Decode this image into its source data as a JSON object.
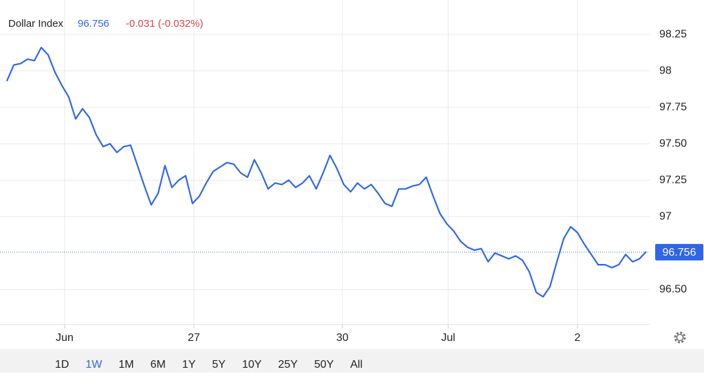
{
  "header": {
    "title": "Dollar Index",
    "price": "96.756",
    "change": "-0.031 (-0.032%)"
  },
  "chart_data": {
    "type": "line",
    "color": "#2f66e8",
    "grid": true,
    "last_value": 96.756,
    "xlim": [
      -1,
      93.5
    ],
    "ylim": [
      96.26,
      98.486
    ],
    "xticks": [
      {
        "value": 8.4,
        "label": "Jun"
      },
      {
        "value": 27.2,
        "label": "27"
      },
      {
        "value": 48.8,
        "label": "30"
      },
      {
        "value": 64.2,
        "label": "Jul"
      },
      {
        "value": 83,
        "label": "2"
      }
    ],
    "yticks": [
      98.25,
      98,
      97.75,
      {
        "value": 97.5,
        "label": "97.50"
      },
      97.25,
      97,
      {
        "value": 96.5,
        "label": "96.50"
      }
    ],
    "x": [
      0,
      1,
      2,
      3,
      4,
      5,
      6,
      7,
      8,
      9,
      10,
      11,
      12,
      13,
      14,
      15,
      16,
      17,
      18,
      19,
      20,
      21,
      22,
      23,
      24,
      25,
      26,
      27,
      28,
      29,
      30,
      31,
      32,
      33,
      34,
      35,
      36,
      37,
      38,
      39,
      40,
      41,
      42,
      43,
      44,
      45,
      46,
      47,
      48,
      49,
      50,
      51,
      52,
      53,
      54,
      55,
      56,
      57,
      58,
      59,
      60,
      61,
      62,
      63,
      64,
      65,
      66,
      67,
      68,
      69,
      70,
      71,
      72,
      73,
      74,
      75,
      76,
      77,
      78,
      79,
      80,
      81,
      82,
      83,
      84,
      85,
      86,
      87,
      88,
      89,
      90,
      91,
      92,
      93
    ],
    "values": [
      97.93,
      98.04,
      98.05,
      98.08,
      98.07,
      98.16,
      98.11,
      97.99,
      97.9,
      97.82,
      97.67,
      97.74,
      97.68,
      97.56,
      97.48,
      97.5,
      97.44,
      97.48,
      97.49,
      97.35,
      97.21,
      97.08,
      97.16,
      97.35,
      97.2,
      97.25,
      97.28,
      97.09,
      97.14,
      97.23,
      97.31,
      97.34,
      97.37,
      97.36,
      97.3,
      97.27,
      97.39,
      97.3,
      97.19,
      97.23,
      97.22,
      97.25,
      97.2,
      97.23,
      97.28,
      97.19,
      97.3,
      97.42,
      97.33,
      97.22,
      97.17,
      97.23,
      97.19,
      97.22,
      97.16,
      97.09,
      97.07,
      97.19,
      97.19,
      97.21,
      97.22,
      97.27,
      97.14,
      97.02,
      96.95,
      96.9,
      96.83,
      96.79,
      96.77,
      96.78,
      96.69,
      96.75,
      96.73,
      96.71,
      96.73,
      96.7,
      96.62,
      96.48,
      96.45,
      96.52,
      96.69,
      96.85,
      96.93,
      96.89,
      96.81,
      96.74,
      96.67,
      96.67,
      96.65,
      96.67,
      96.74,
      96.69,
      96.71,
      96.76
    ]
  },
  "range_buttons": [
    "1D",
    "1W",
    "1M",
    "6M",
    "1Y",
    "5Y",
    "10Y",
    "25Y",
    "50Y",
    "All"
  ],
  "active_range_index": 1
}
